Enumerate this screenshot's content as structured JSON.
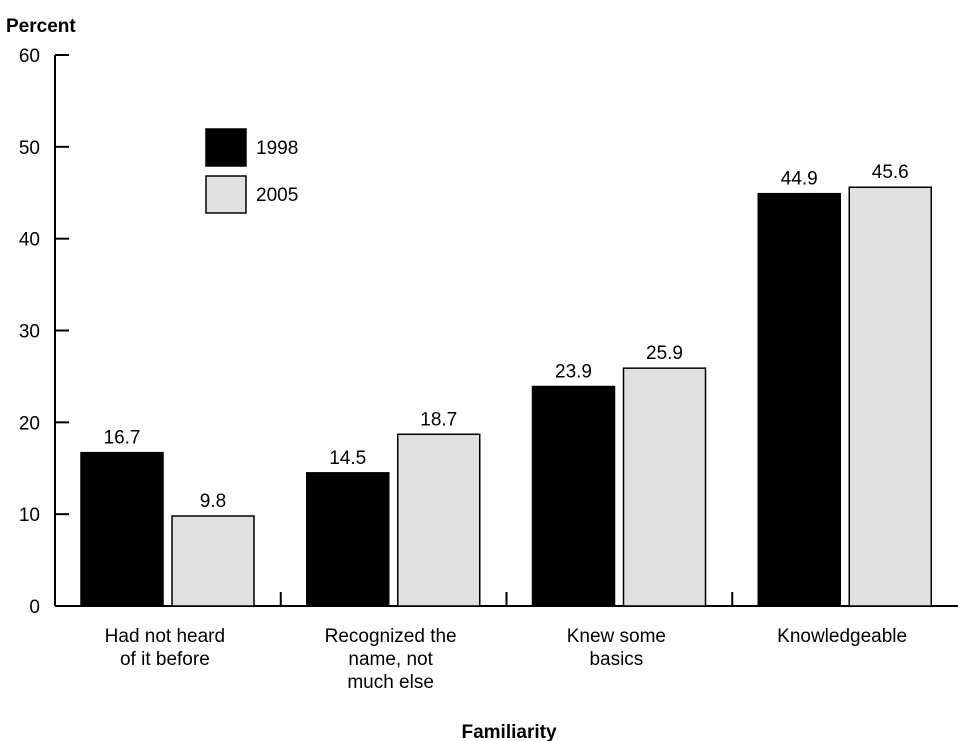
{
  "chart_data": {
    "type": "bar",
    "title": "",
    "ylabel": "Percent",
    "xlabel": "Familiarity",
    "ylim": [
      0,
      60
    ],
    "yticks": [
      0,
      10,
      20,
      30,
      40,
      50,
      60
    ],
    "grid": false,
    "legend_position": "upper-left",
    "categories": [
      [
        "Had not heard",
        "of it before"
      ],
      [
        "Recognized the",
        "name, not",
        "much else"
      ],
      [
        "Knew some",
        "basics"
      ],
      [
        "Knowledgeable"
      ]
    ],
    "series": [
      {
        "name": "1998",
        "color": "#000000",
        "values": [
          16.7,
          14.5,
          23.9,
          44.9
        ]
      },
      {
        "name": "2005",
        "color": "#e0e0e0",
        "values": [
          9.8,
          18.7,
          25.9,
          45.6
        ]
      }
    ],
    "data_labels": [
      [
        "16.7",
        "14.5",
        "23.9",
        "44.9"
      ],
      [
        "9.8",
        "18.7",
        "25.9",
        "45.6"
      ]
    ]
  }
}
